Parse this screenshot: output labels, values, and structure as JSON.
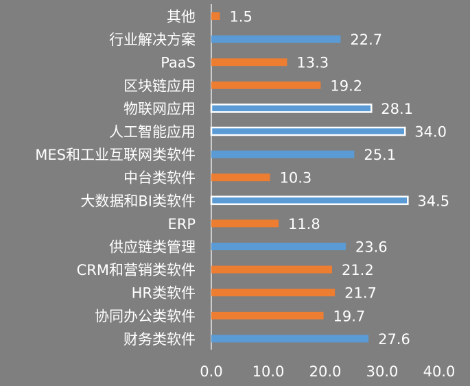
{
  "chart_data": {
    "type": "bar",
    "orientation": "horizontal",
    "categories": [
      "其他",
      "行业解决方案",
      "PaaS",
      "区块链应用",
      "物联网应用",
      "人工智能应用",
      "MES和工业互联网类软件",
      "中台类软件",
      "大数据和BI类软件",
      "ERP",
      "供应链类管理",
      "CRM和营销类软件",
      "HR类软件",
      "协同办公类软件",
      "财务类软件"
    ],
    "values": [
      1.5,
      22.7,
      13.3,
      19.2,
      28.1,
      34.0,
      25.1,
      10.3,
      34.5,
      11.8,
      23.6,
      21.2,
      21.7,
      19.7,
      27.6
    ],
    "value_labels": [
      "1.5",
      "22.7",
      "13.3",
      "19.2",
      "28.1",
      "34.0",
      "25.1",
      "10.3",
      "34.5",
      "11.8",
      "23.6",
      "21.2",
      "21.7",
      "19.7",
      "27.6"
    ],
    "bar_colors": [
      "orange",
      "blue",
      "orange",
      "orange",
      "white-outline",
      "white-outline",
      "blue",
      "orange",
      "white-outline",
      "orange",
      "blue",
      "orange",
      "orange",
      "orange",
      "blue"
    ],
    "xlim": [
      0,
      40
    ],
    "xticks": [
      "0.0",
      "10.0",
      "20.0",
      "30.0",
      "40.0"
    ],
    "grid": false,
    "legend": "none",
    "title": "",
    "xlabel": "",
    "ylabel": ""
  },
  "colors": {
    "background": "#7f7f7f",
    "orange": "#ed7d31",
    "blue": "#5b9bd5",
    "white_fill": "#5b9bd5",
    "white_stroke": "#ffffff",
    "text": "#ffffff",
    "axis": "#ffffff"
  }
}
